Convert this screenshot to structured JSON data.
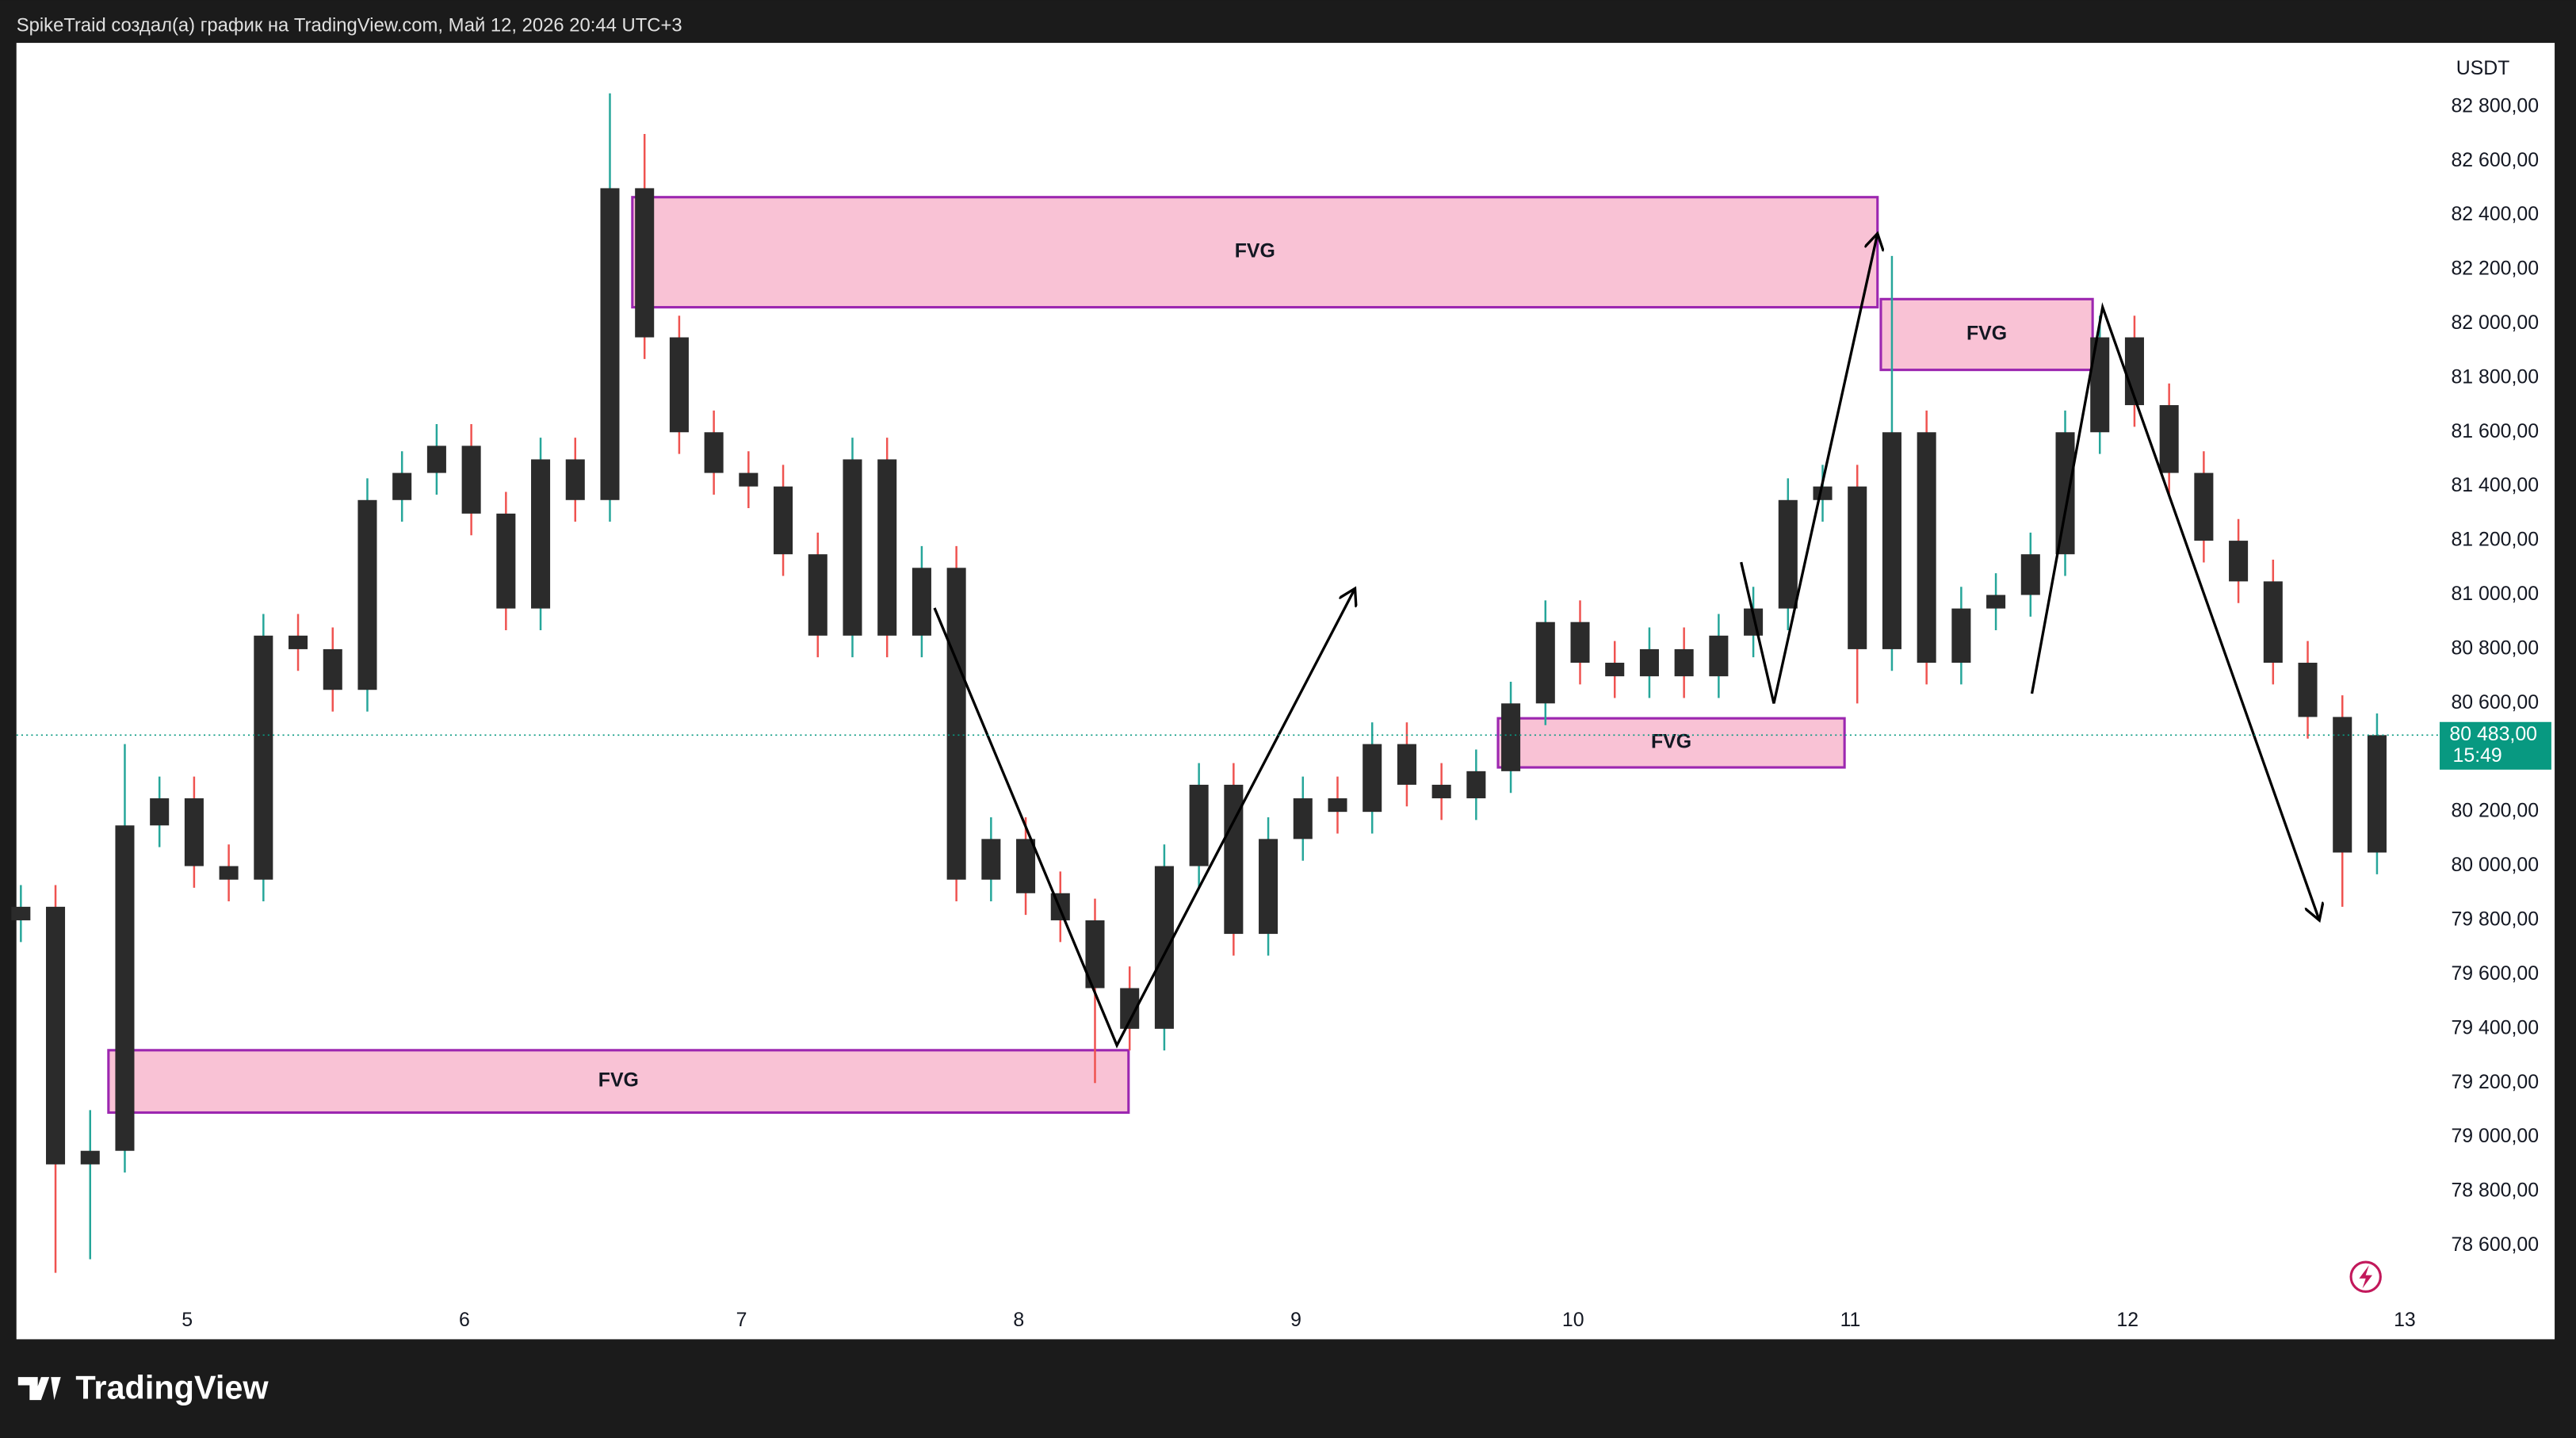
{
  "header": "SpikeTraid создал(а) график на TradingView.com, Май 12, 2026 20:44 UTC+3",
  "brand": "TradingView",
  "chart_data": {
    "type": "candlestick",
    "currency": "USDT",
    "x": [
      4.4,
      4.525,
      4.65,
      4.775,
      4.9,
      5.025,
      5.15,
      5.275,
      5.4,
      5.525,
      5.65,
      5.775,
      5.9,
      6.025,
      6.15,
      6.275,
      6.4,
      6.525,
      6.65,
      6.775,
      6.9,
      7.025,
      7.15,
      7.275,
      7.4,
      7.525,
      7.65,
      7.775,
      7.9,
      8.025,
      8.15,
      8.275,
      8.4,
      8.525,
      8.65,
      8.775,
      8.9,
      9.025,
      9.15,
      9.275,
      9.4,
      9.525,
      9.65,
      9.775,
      9.9,
      10.025,
      10.15,
      10.275,
      10.4,
      10.525,
      10.65,
      10.775,
      10.9,
      11.025,
      11.15,
      11.275,
      11.4,
      11.525,
      11.65,
      11.775,
      11.9,
      12.025,
      12.15,
      12.275,
      12.4,
      12.525,
      12.65,
      12.775,
      12.9
    ],
    "open": [
      79800,
      79850,
      78900,
      78950,
      80150,
      80250,
      80000,
      79950,
      80850,
      80800,
      80650,
      81350,
      81450,
      81550,
      81300,
      80950,
      81500,
      81350,
      82500,
      81950,
      81600,
      81450,
      81400,
      81150,
      80850,
      81500,
      80850,
      81100,
      79950,
      80100,
      79900,
      79800,
      79550,
      79400,
      80000,
      80300,
      79750,
      80100,
      80250,
      80200,
      80450,
      80300,
      80250,
      80350,
      80600,
      80900,
      80750,
      80700,
      80800,
      80700,
      80850,
      80950,
      81350,
      81400,
      80800,
      81600,
      80750,
      80950,
      81000,
      81150,
      81600,
      81950,
      81700,
      81450,
      81200,
      81050,
      80750,
      80550,
      80050
    ],
    "high": [
      79930,
      79930,
      79100,
      80450,
      80330,
      80330,
      80080,
      80930,
      80930,
      80880,
      81430,
      81530,
      81630,
      81630,
      81380,
      81580,
      81580,
      82850,
      82700,
      82030,
      81680,
      81530,
      81480,
      81230,
      81580,
      81580,
      81180,
      81180,
      80180,
      80180,
      79980,
      79880,
      79630,
      80080,
      80380,
      80380,
      80180,
      80330,
      80330,
      80530,
      80530,
      80380,
      80430,
      80680,
      80980,
      80980,
      80830,
      80880,
      80880,
      80930,
      81030,
      81430,
      81480,
      81480,
      82250,
      81680,
      81030,
      81080,
      81230,
      81680,
      82030,
      82030,
      81780,
      81530,
      81280,
      81130,
      80830,
      80630,
      80563
    ],
    "low": [
      79720,
      78500,
      78550,
      78870,
      80070,
      79920,
      79870,
      79870,
      80720,
      80570,
      80570,
      81270,
      81370,
      81220,
      80870,
      80870,
      81270,
      81270,
      81870,
      81520,
      81370,
      81320,
      81070,
      80770,
      80770,
      80770,
      80770,
      79870,
      79870,
      79820,
      79720,
      79200,
      79320,
      79320,
      79920,
      79670,
      79670,
      80020,
      80120,
      80120,
      80220,
      80170,
      80170,
      80270,
      80520,
      80670,
      80620,
      80620,
      80620,
      80620,
      80770,
      80870,
      81270,
      80600,
      80720,
      80670,
      80670,
      80870,
      80920,
      81070,
      81520,
      81620,
      81370,
      81120,
      80970,
      80670,
      80470,
      79850,
      79970
    ],
    "close": [
      79850,
      78900,
      78950,
      80150,
      80250,
      80000,
      79950,
      80850,
      80800,
      80650,
      81350,
      81450,
      81550,
      81300,
      80950,
      81500,
      81350,
      82500,
      81950,
      81600,
      81450,
      81400,
      81150,
      80850,
      81500,
      80850,
      81100,
      79950,
      80100,
      79900,
      79800,
      79550,
      79400,
      80000,
      80300,
      79750,
      80100,
      80250,
      80200,
      80450,
      80300,
      80250,
      80350,
      80600,
      80900,
      80750,
      80700,
      80800,
      80700,
      80850,
      80950,
      81350,
      81400,
      80800,
      81600,
      80750,
      80950,
      81000,
      81150,
      81600,
      81950,
      81700,
      81450,
      81200,
      81050,
      80750,
      80550,
      80050,
      80483
    ],
    "up_color": "#26a69a",
    "down_color": "#ef5350",
    "body_color": "#2b2b2b",
    "xlim": [
      4.384,
      13.12
    ],
    "ylim": [
      78255,
      83036
    ],
    "xticks": [
      5,
      6,
      7,
      8,
      9,
      10,
      11,
      12,
      13
    ],
    "yticks": [
      {
        "value": 78600,
        "label": "78 600,00"
      },
      {
        "value": 78800,
        "label": "78 800,00"
      },
      {
        "value": 79000,
        "label": "79 000,00"
      },
      {
        "value": 79200,
        "label": "79 200,00"
      },
      {
        "value": 79400,
        "label": "79 400,00"
      },
      {
        "value": 79600,
        "label": "79 600,00"
      },
      {
        "value": 79800,
        "label": "79 800,00"
      },
      {
        "value": 80000,
        "label": "80 000,00"
      },
      {
        "value": 80200,
        "label": "80 200,00"
      },
      {
        "value": 80400,
        "label": "80 400,00"
      },
      {
        "value": 80600,
        "label": "80 600,00"
      },
      {
        "value": 80800,
        "label": "80 800,00"
      },
      {
        "value": 81000,
        "label": "81 000,00"
      },
      {
        "value": 81200,
        "label": "81 200,00"
      },
      {
        "value": 81400,
        "label": "81 400,00"
      },
      {
        "value": 81600,
        "label": "81 600,00"
      },
      {
        "value": 81800,
        "label": "81 800,00"
      },
      {
        "value": 82000,
        "label": "82 000,00"
      },
      {
        "value": 82200,
        "label": "82 200,00"
      },
      {
        "value": 82400,
        "label": "82 400,00"
      },
      {
        "value": 82600,
        "label": "82 600,00"
      },
      {
        "value": 82800,
        "label": "82 800,00"
      }
    ],
    "last_price": {
      "value": 80483,
      "label": "80 483,00",
      "countdown": "15:49",
      "color": "#089981"
    },
    "zones": [
      {
        "label": "FVG",
        "x": [
          6.606,
          11.098
        ],
        "y": [
          82061,
          82467
        ]
      },
      {
        "label": "FVG",
        "x": [
          11.11,
          11.874
        ],
        "y": [
          81830,
          82091
        ]
      },
      {
        "label": "FVG",
        "x": [
          9.729,
          10.979
        ],
        "y": [
          80364,
          80545
        ]
      },
      {
        "label": "FVG",
        "x": [
          4.716,
          8.396
        ],
        "y": [
          79091,
          79321
        ]
      }
    ],
    "zone_fill": "#f8bbd0",
    "zone_border": "#9c27b0",
    "arrows": [
      {
        "x": [
          7.696,
          8.354,
          9.213
        ],
        "y": [
          80952,
          79339,
          81024
        ]
      },
      {
        "x": [
          10.606,
          10.724,
          11.098
        ],
        "y": [
          81121,
          80600,
          82333
        ]
      },
      {
        "x": [
          11.655,
          11.91,
          12.692
        ],
        "y": [
          80636,
          82061,
          79800
        ]
      }
    ],
    "arrow_color": "#000000"
  }
}
